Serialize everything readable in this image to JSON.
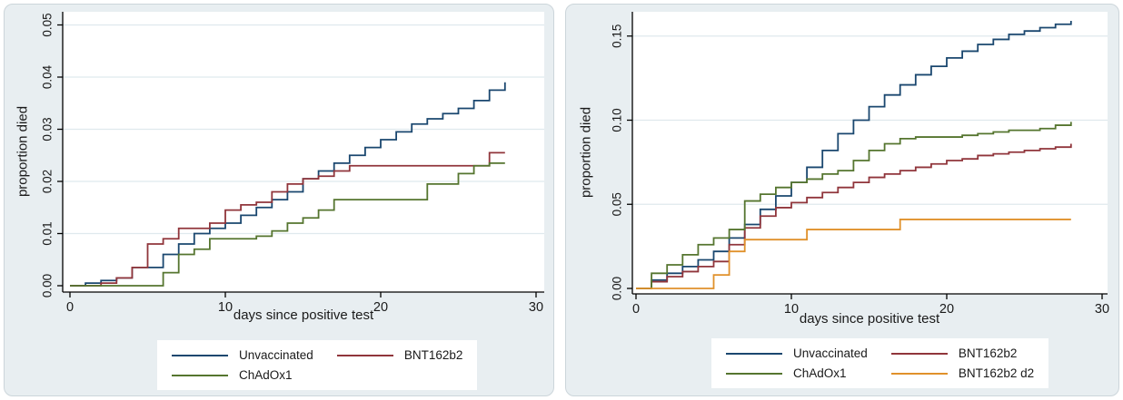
{
  "figure": {
    "background": "#ffffff",
    "panel_background": "#e8eef1",
    "plot_background": "#ffffff",
    "gridline_color": "#dfe9ed",
    "axis_color": "#000000"
  },
  "chart_data": [
    {
      "type": "line",
      "subtype": "step-post",
      "title": "",
      "xlabel": "days since positive test",
      "ylabel": "proportion died",
      "xlim": [
        0,
        30
      ],
      "ylim": [
        0,
        0.05
      ],
      "grid": "horizontal",
      "legend_position": "bottom",
      "x_ticks": [
        {
          "v": 0,
          "label": "0"
        },
        {
          "v": 10,
          "label": "10"
        },
        {
          "v": 20,
          "label": "20"
        },
        {
          "v": 30,
          "label": "30"
        }
      ],
      "y_ticks": [
        {
          "v": 0,
          "label": "0.00"
        },
        {
          "v": 0.01,
          "label": "0.01"
        },
        {
          "v": 0.02,
          "label": "0.02"
        },
        {
          "v": 0.03,
          "label": "0.03"
        },
        {
          "v": 0.04,
          "label": "0.04"
        },
        {
          "v": 0.05,
          "label": "0.05"
        }
      ],
      "days": [
        0,
        1,
        2,
        3,
        4,
        5,
        6,
        7,
        8,
        9,
        10,
        11,
        12,
        13,
        14,
        15,
        16,
        17,
        18,
        19,
        20,
        21,
        22,
        23,
        24,
        25,
        26,
        27,
        28
      ],
      "series": [
        {
          "name": "Unvaccinated",
          "color": "#1a476f",
          "values": [
            0,
            0.0005,
            0.001,
            0.0015,
            0.0035,
            0.0035,
            0.006,
            0.008,
            0.01,
            0.011,
            0.012,
            0.0135,
            0.015,
            0.0165,
            0.018,
            0.0205,
            0.022,
            0.0235,
            0.025,
            0.0265,
            0.028,
            0.0295,
            0.031,
            0.032,
            0.033,
            0.034,
            0.0355,
            0.0375,
            0.039
          ]
        },
        {
          "name": "BNT162b2",
          "color": "#90353b",
          "values": [
            0,
            0,
            0.0005,
            0.0015,
            0.0035,
            0.008,
            0.009,
            0.011,
            0.011,
            0.012,
            0.0145,
            0.0155,
            0.016,
            0.018,
            0.0195,
            0.0205,
            0.021,
            0.022,
            0.023,
            0.023,
            0.023,
            0.023,
            0.023,
            0.023,
            0.023,
            0.023,
            0.023,
            0.0255,
            0.0255
          ]
        },
        {
          "name": "ChAdOx1",
          "color": "#55752f",
          "values": [
            0,
            0,
            0,
            0,
            0,
            0,
            0.0025,
            0.006,
            0.007,
            0.009,
            0.009,
            0.009,
            0.0095,
            0.0105,
            0.012,
            0.013,
            0.0145,
            0.0165,
            0.0165,
            0.0165,
            0.0165,
            0.0165,
            0.0165,
            0.0195,
            0.0195,
            0.0215,
            0.023,
            0.0235,
            0.0235
          ]
        }
      ]
    },
    {
      "type": "line",
      "subtype": "step-post",
      "title": "",
      "xlabel": "days since positive test",
      "ylabel": "proportion died",
      "xlim": [
        0,
        30
      ],
      "ylim": [
        0,
        0.15
      ],
      "grid": "horizontal",
      "legend_position": "bottom",
      "x_ticks": [
        {
          "v": 0,
          "label": "0"
        },
        {
          "v": 10,
          "label": "10"
        },
        {
          "v": 20,
          "label": "20"
        },
        {
          "v": 30,
          "label": "30"
        }
      ],
      "y_ticks": [
        {
          "v": 0,
          "label": "0.00"
        },
        {
          "v": 0.05,
          "label": "0.05"
        },
        {
          "v": 0.1,
          "label": "0.10"
        },
        {
          "v": 0.15,
          "label": "0.15"
        }
      ],
      "days": [
        0,
        1,
        2,
        3,
        4,
        5,
        6,
        7,
        8,
        9,
        10,
        11,
        12,
        13,
        14,
        15,
        16,
        17,
        18,
        19,
        20,
        21,
        22,
        23,
        24,
        25,
        26,
        27,
        28
      ],
      "series": [
        {
          "name": "Unvaccinated",
          "color": "#1a476f",
          "values": [
            0,
            0.005,
            0.009,
            0.013,
            0.017,
            0.022,
            0.03,
            0.038,
            0.047,
            0.055,
            0.063,
            0.072,
            0.082,
            0.092,
            0.1,
            0.108,
            0.115,
            0.121,
            0.127,
            0.132,
            0.137,
            0.141,
            0.145,
            0.148,
            0.151,
            0.153,
            0.155,
            0.157,
            0.159
          ]
        },
        {
          "name": "BNT162b2",
          "color": "#90353b",
          "values": [
            0,
            0.004,
            0.007,
            0.01,
            0.013,
            0.016,
            0.026,
            0.036,
            0.043,
            0.048,
            0.051,
            0.054,
            0.057,
            0.06,
            0.063,
            0.066,
            0.068,
            0.07,
            0.072,
            0.074,
            0.076,
            0.077,
            0.079,
            0.08,
            0.081,
            0.082,
            0.083,
            0.084,
            0.086
          ]
        },
        {
          "name": "ChAdOx1",
          "color": "#55752f",
          "values": [
            0,
            0.009,
            0.014,
            0.02,
            0.026,
            0.03,
            0.035,
            0.052,
            0.056,
            0.06,
            0.063,
            0.065,
            0.068,
            0.07,
            0.076,
            0.082,
            0.086,
            0.089,
            0.09,
            0.09,
            0.09,
            0.091,
            0.092,
            0.093,
            0.094,
            0.094,
            0.095,
            0.097,
            0.099
          ]
        },
        {
          "name": "BNT162b2 d2",
          "color": "#e0912b",
          "values": [
            0,
            0,
            0,
            0,
            0,
            0.008,
            0.022,
            0.029,
            0.029,
            0.029,
            0.029,
            0.035,
            0.035,
            0.035,
            0.035,
            0.035,
            0.035,
            0.041,
            0.041,
            0.041,
            0.041,
            0.041,
            0.041,
            0.041,
            0.041,
            0.041,
            0.041,
            0.041,
            0.041
          ]
        }
      ]
    }
  ]
}
